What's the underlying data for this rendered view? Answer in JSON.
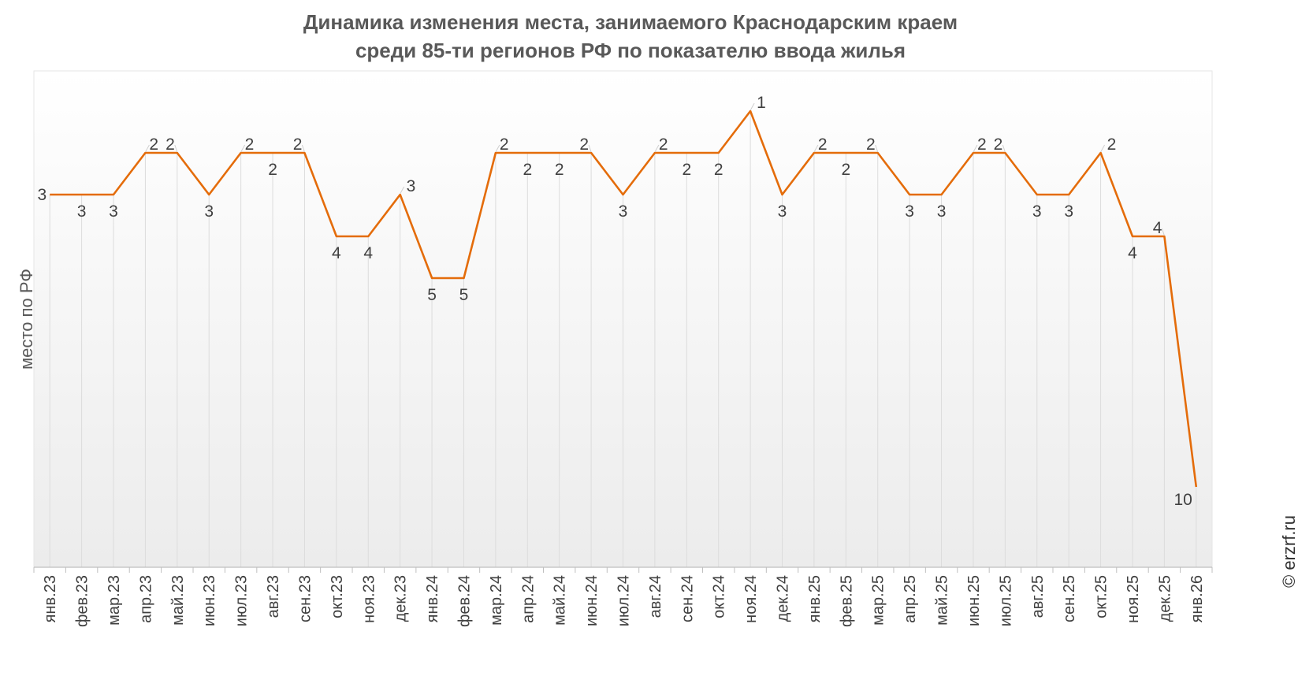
{
  "chart_data": {
    "type": "line",
    "title_lines": [
      "Динамика изменения места, занимаемого Краснодарским краем",
      "среди 85-ти регионов РФ по показателю ввода жилья"
    ],
    "ylabel": "место по РФ",
    "y_inverted": true,
    "grid": "vertical",
    "categories": [
      "янв.23",
      "фев.23",
      "мар.23",
      "апр.23",
      "май.23",
      "июн.23",
      "июл.23",
      "авг.23",
      "сен.23",
      "окт.23",
      "ноя.23",
      "дек.23",
      "янв.24",
      "фев.24",
      "мар.24",
      "апр.24",
      "май.24",
      "июн.24",
      "июл.24",
      "авг.24",
      "сен.24",
      "окт.24",
      "ноя.24",
      "дек.24",
      "янв.25",
      "фев.25",
      "мар.25",
      "апр.25",
      "май.25",
      "июн.25",
      "июл.25",
      "авг.25",
      "сен.25",
      "окт.25",
      "ноя.25",
      "дек.25",
      "янв.26"
    ],
    "values": [
      3,
      3,
      3,
      2,
      2,
      3,
      2,
      2,
      2,
      4,
      4,
      3,
      5,
      5,
      2,
      2,
      2,
      2,
      3,
      2,
      2,
      2,
      1,
      3,
      2,
      2,
      2,
      3,
      3,
      2,
      2,
      3,
      3,
      2,
      4,
      4,
      10
    ],
    "line_color": "#E46C0A"
  },
  "watermark": "© erzrf.ru"
}
